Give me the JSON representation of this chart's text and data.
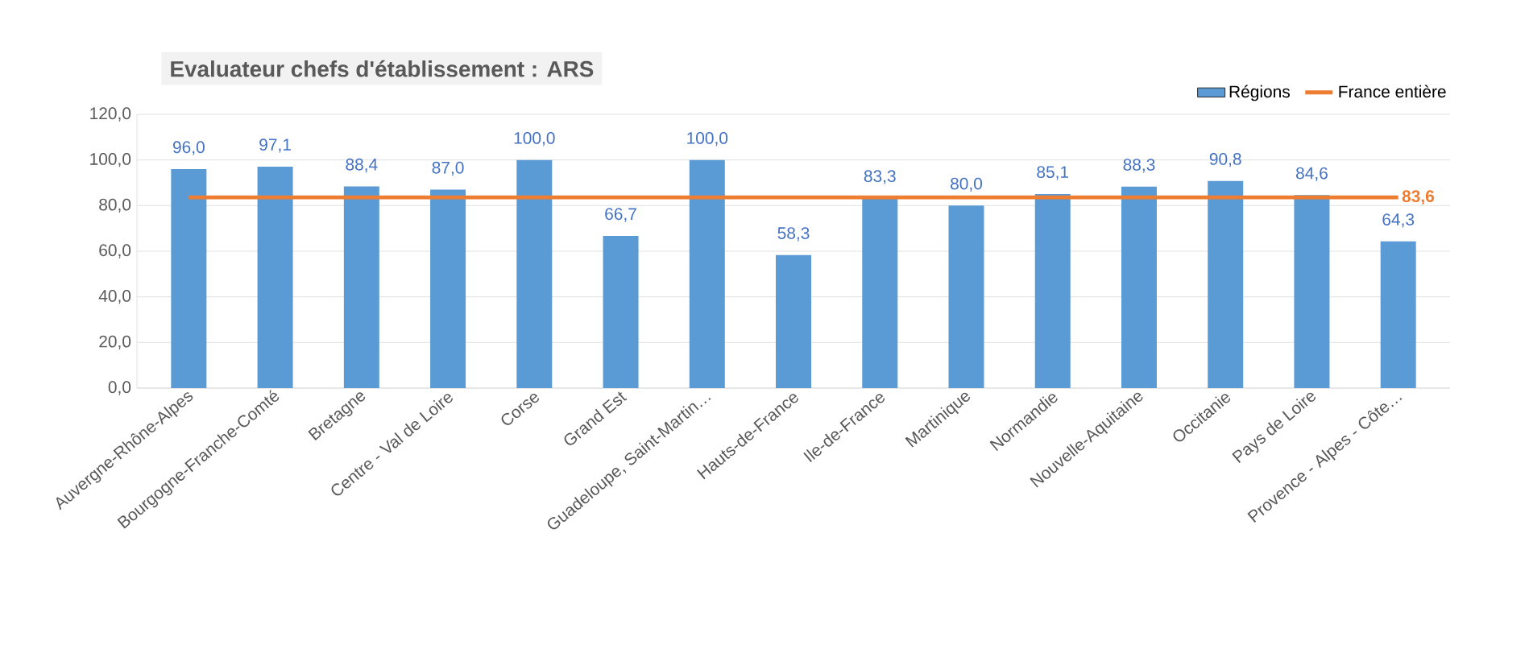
{
  "chart_data": {
    "type": "bar",
    "title": "Evaluateur chefs d'établissement : ARS",
    "categories": [
      "Auvergne-Rhône-Alpes",
      "Bourgogne-Franche-Comté",
      "Bretagne",
      "Centre - Val de Loire",
      "Corse",
      "Grand Est",
      "Guadeloupe, Saint-Martin…",
      "Hauts-de-France",
      "Ile-de-France",
      "Martinique",
      "Normandie",
      "Nouvelle-Aquitaine",
      "Occitanie",
      "Pays de Loire",
      "Provence - Alpes - Côte…"
    ],
    "series": [
      {
        "name": "Régions",
        "color": "#5b9bd5",
        "values": [
          96.0,
          97.1,
          88.4,
          87.0,
          100.0,
          66.7,
          100.0,
          58.3,
          83.3,
          80.0,
          85.1,
          88.3,
          90.8,
          84.6,
          64.3
        ],
        "value_labels": [
          "96,0",
          "97,1",
          "88,4",
          "87,0",
          "100,0",
          "66,7",
          "100,0",
          "58,3",
          "83,3",
          "80,0",
          "85,1",
          "88,3",
          "90,8",
          "84,6",
          "64,3"
        ]
      },
      {
        "name": "France entière",
        "type": "line",
        "color": "#ed7d31",
        "values": [
          83.6,
          83.6,
          83.6,
          83.6,
          83.6,
          83.6,
          83.6,
          83.6,
          83.6,
          83.6,
          83.6,
          83.6,
          83.6,
          83.6,
          83.6
        ],
        "value_labels": [
          null,
          null,
          null,
          null,
          null,
          null,
          null,
          null,
          null,
          null,
          null,
          null,
          null,
          null,
          "83,6"
        ]
      }
    ],
    "ylim": [
      0,
      120
    ],
    "yticks": [
      {
        "value": 0,
        "label": "0,0"
      },
      {
        "value": 20,
        "label": "20,0"
      },
      {
        "value": 40,
        "label": "40,0"
      },
      {
        "value": 60,
        "label": "60,0"
      },
      {
        "value": 80,
        "label": "80,0"
      },
      {
        "value": 100,
        "label": "100,0"
      },
      {
        "value": 120,
        "label": "120,0"
      }
    ],
    "grid": "y",
    "legend": "top right"
  }
}
